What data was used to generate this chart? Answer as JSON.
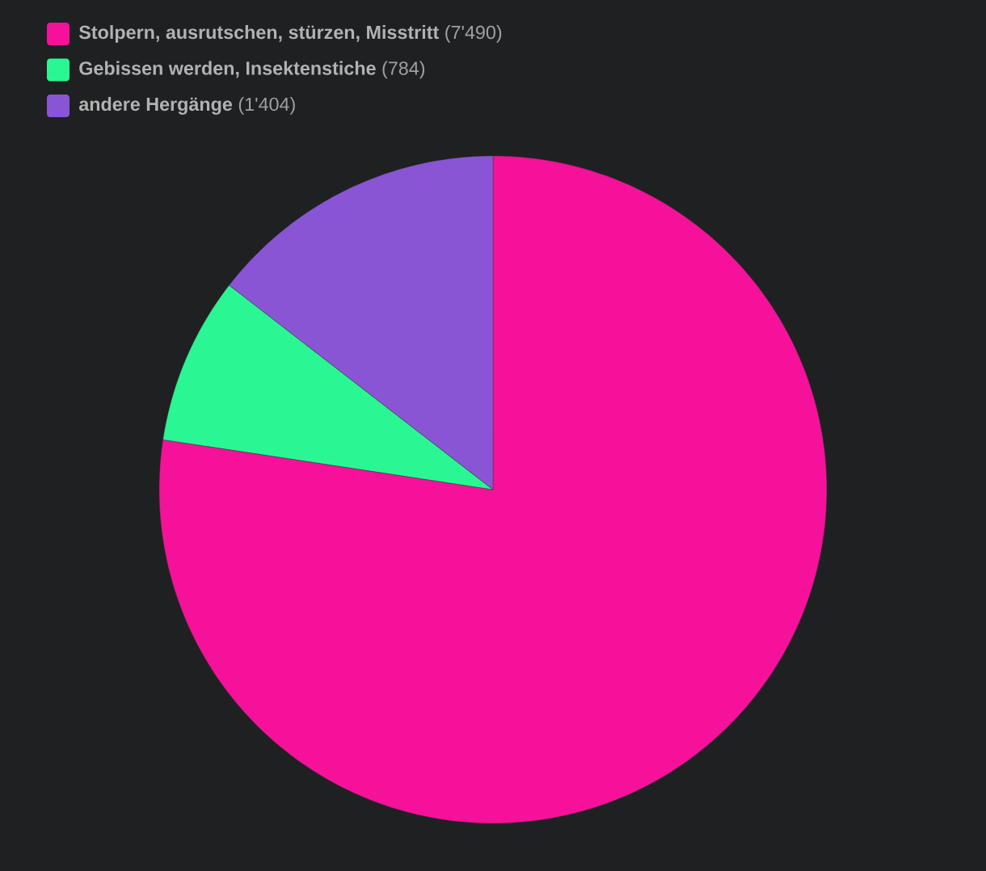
{
  "chart_data": {
    "type": "pie",
    "categories": [
      "Stolpern, ausrutschen, stürzen, Misstritt",
      "Gebissen werden, Insektenstiche",
      "andere Hergänge"
    ],
    "values": [
      7490,
      784,
      1404
    ],
    "value_labels": [
      "(7'490)",
      "(784)",
      "(1'404)"
    ],
    "colors": [
      "#f5119a",
      "#2af793",
      "#8a55d5"
    ],
    "legend": "top left"
  }
}
